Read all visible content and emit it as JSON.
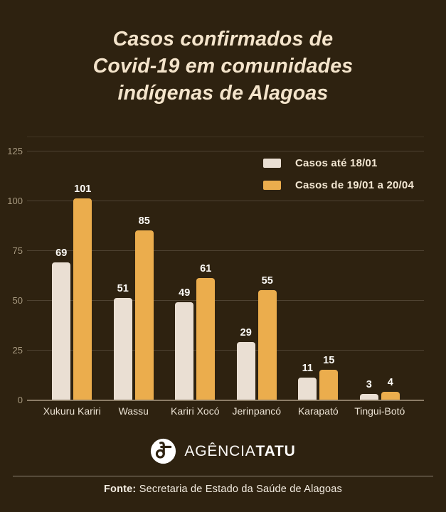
{
  "title": "Casos confirmados de\nCovid-19 em comunidades\nindígenas de Alagoas",
  "colors": {
    "background": "#2E2210",
    "title_text": "#F4E4CB",
    "bar_cream": "#EADFD3",
    "bar_orange": "#EBAD4D",
    "value_label": "#FDFBF7",
    "y_axis_label": "#A89A80",
    "category_label": "#EBE2D3",
    "legend_text": "#F3E7D3",
    "footer_text": "#FCFAF7"
  },
  "chart_data": {
    "type": "bar",
    "title": "Casos confirmados de Covid-19 em comunidades indígenas de Alagoas",
    "categories": [
      "Xukuru Kariri",
      "Wassu",
      "Kariri Xocó",
      "Jerinpancó",
      "Karapató",
      "Tingui-Botó"
    ],
    "series": [
      {
        "name": "Casos até 18/01",
        "color": "#EADFD3",
        "values": [
          69,
          51,
          49,
          29,
          11,
          3
        ]
      },
      {
        "name": "Casos de 19/01 a 20/04",
        "color": "#EBAD4D",
        "values": [
          101,
          85,
          61,
          55,
          15,
          4
        ]
      }
    ],
    "yticks": [
      0,
      25,
      50,
      75,
      100,
      125
    ],
    "ylim": [
      0,
      132
    ],
    "grid": true,
    "legend_position": "top-right",
    "xlabel": "",
    "ylabel": ""
  },
  "footer": {
    "logo_regular": "AGÊNCIA",
    "logo_bold": "TATU",
    "source_label": "Fonte:",
    "source_text": " Secretaria de Estado da Saúde de Alagoas"
  }
}
